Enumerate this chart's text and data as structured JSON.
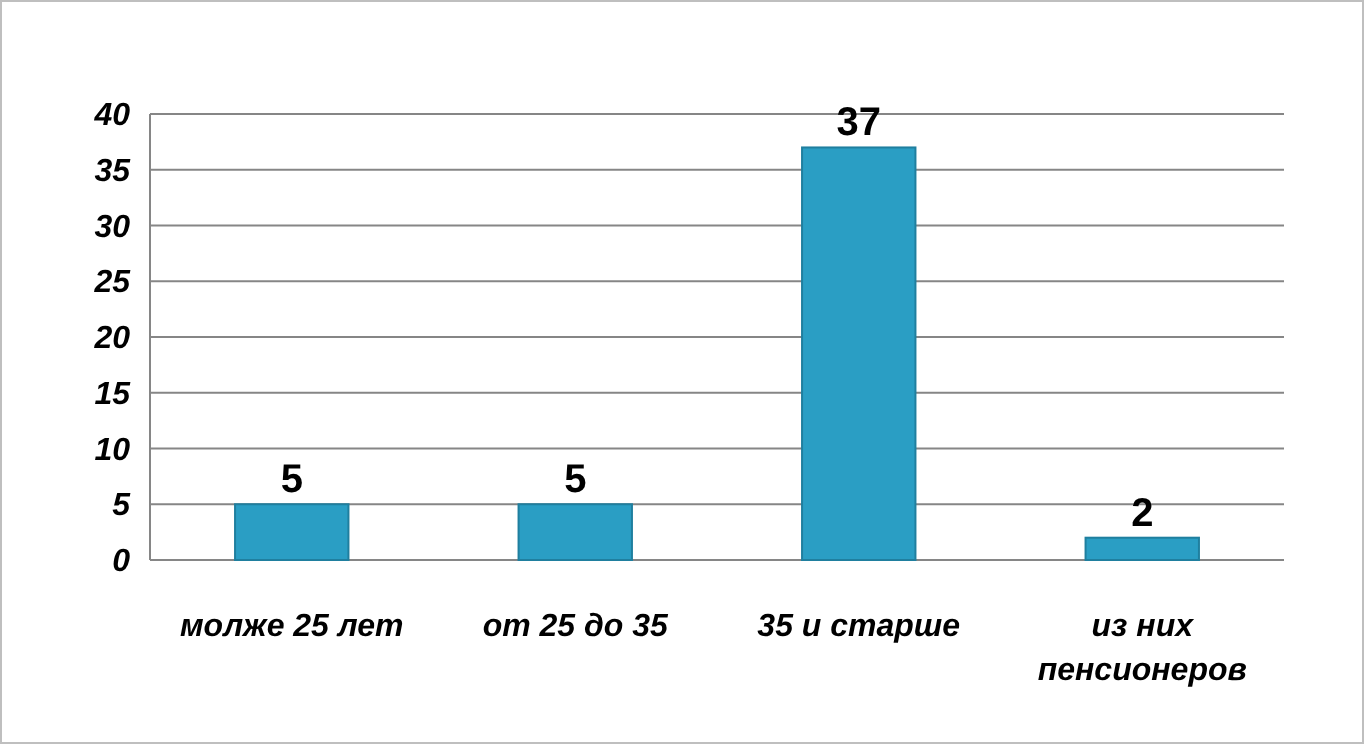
{
  "chart_data": {
    "type": "bar",
    "categories": [
      "молже 25 лет",
      "от 25 до 35",
      "35 и старше",
      "из них пенсионеров"
    ],
    "values": [
      5,
      5,
      37,
      2
    ],
    "color": "#2a9ec4",
    "ylim": [
      0,
      40
    ],
    "yticks": [
      0,
      5,
      10,
      15,
      20,
      25,
      30,
      35,
      40
    ],
    "grid": "y",
    "data_labels": true
  }
}
